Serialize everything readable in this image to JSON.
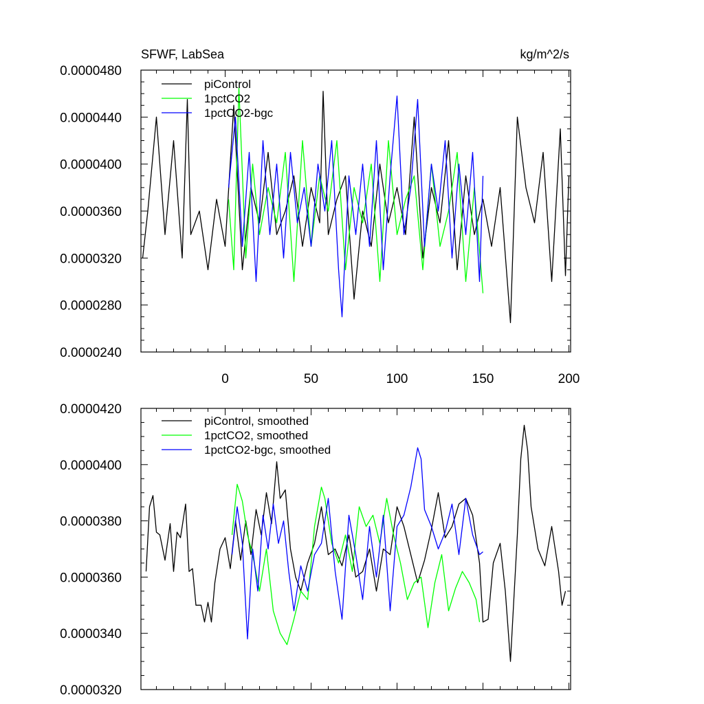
{
  "chart_data": [
    {
      "type": "line",
      "title": "SFWF, LabSea",
      "units": "kg/m^2/s",
      "xlim": [
        -49,
        201
      ],
      "ylim": [
        2.4e-05,
        4.8e-05
      ],
      "xticks": [
        0,
        50,
        100,
        150,
        200
      ],
      "xtick_labels": [
        "0",
        "50",
        "100",
        "150",
        "200"
      ],
      "yticks": [
        2.4e-05,
        2.8e-05,
        3.2e-05,
        3.6e-05,
        4e-05,
        4.4e-05,
        4.8e-05
      ],
      "ytick_labels": [
        "0.0000240",
        "0.0000280",
        "0.0000320",
        "0.0000360",
        "0.0000400",
        "0.0000440",
        "0.0000480"
      ],
      "legend_position": "top-left",
      "series": [
        {
          "name": "piControl",
          "color": "#000000",
          "x": [
            -48,
            -45,
            -40,
            -35,
            -30,
            -25,
            -22,
            -20,
            -15,
            -10,
            -5,
            0,
            5,
            10,
            15,
            20,
            25,
            30,
            35,
            40,
            45,
            50,
            55,
            57,
            60,
            65,
            70,
            75,
            80,
            85,
            90,
            95,
            100,
            105,
            110,
            115,
            120,
            125,
            130,
            135,
            140,
            145,
            150,
            155,
            160,
            166,
            170,
            175,
            180,
            185,
            190,
            195,
            198,
            200
          ],
          "values": [
            3.2e-05,
            3.6e-05,
            4.4e-05,
            3.4e-05,
            4.2e-05,
            3.2e-05,
            4.55e-05,
            3.4e-05,
            3.6e-05,
            3.1e-05,
            3.7e-05,
            3.3e-05,
            4.5e-05,
            3.1e-05,
            3.8e-05,
            3.5e-05,
            4.1e-05,
            3.4e-05,
            3.6e-05,
            3.9e-05,
            3.3e-05,
            3.8e-05,
            3.5e-05,
            4.62e-05,
            3.4e-05,
            3.7e-05,
            3.9e-05,
            2.85e-05,
            3.6e-05,
            3.3e-05,
            4e-05,
            3.5e-05,
            3.8e-05,
            3.4e-05,
            4.4e-05,
            3.2e-05,
            3.8e-05,
            3.5e-05,
            4.2e-05,
            3.1e-05,
            3.9e-05,
            3.4e-05,
            3.7e-05,
            3.3e-05,
            3.8e-05,
            2.65e-05,
            4.4e-05,
            3.8e-05,
            3.5e-05,
            4.1e-05,
            3e-05,
            4.3e-05,
            3.05e-05,
            3.9e-05
          ]
        },
        {
          "name": "1pctCO2",
          "color": "#00ff00",
          "x": [
            2,
            5,
            8,
            12,
            16,
            20,
            25,
            30,
            35,
            40,
            45,
            50,
            55,
            60,
            65,
            70,
            75,
            80,
            85,
            90,
            95,
            100,
            105,
            110,
            115,
            120,
            125,
            130,
            135,
            140,
            145,
            150
          ],
          "values": [
            3.7e-05,
            3.1e-05,
            4.65e-05,
            3.2e-05,
            4e-05,
            3.4e-05,
            3.8e-05,
            3.5e-05,
            4.1e-05,
            3e-05,
            4.2e-05,
            3.3e-05,
            3.9e-05,
            3.6e-05,
            4.2e-05,
            3.1e-05,
            3.8e-05,
            3.5e-05,
            4e-05,
            3e-05,
            4.2e-05,
            3.4e-05,
            3.7e-05,
            3.9e-05,
            3.1e-05,
            4e-05,
            3.3e-05,
            3.6e-05,
            4.1e-05,
            3e-05,
            3.8e-05,
            2.9e-05
          ]
        },
        {
          "name": "1pctCO2-bgc",
          "color": "#0000ff",
          "x": [
            2,
            6,
            10,
            14,
            18,
            22,
            26,
            30,
            34,
            38,
            42,
            46,
            50,
            54,
            58,
            62,
            66,
            68,
            72,
            76,
            80,
            84,
            88,
            92,
            96,
            100,
            104,
            108,
            112,
            116,
            120,
            124,
            128,
            132,
            136,
            140,
            144,
            148,
            150
          ],
          "values": [
            3.8e-05,
            4.4e-05,
            3.3e-05,
            4.1e-05,
            3e-05,
            4.2e-05,
            3.4e-05,
            4e-05,
            3.2e-05,
            4.1e-05,
            3.5e-05,
            3.8e-05,
            3.3e-05,
            4e-05,
            3.6e-05,
            4.2e-05,
            3.1e-05,
            2.7e-05,
            3.9e-05,
            3.4e-05,
            4e-05,
            3.3e-05,
            4.2e-05,
            3.1e-05,
            3.9e-05,
            4.58e-05,
            3.4e-05,
            3.8e-05,
            4.55e-05,
            3.3e-05,
            4e-05,
            3.6e-05,
            4.2e-05,
            3.2e-05,
            4e-05,
            3.4e-05,
            4.1e-05,
            3e-05,
            3.9e-05
          ]
        }
      ]
    },
    {
      "type": "line",
      "title": "",
      "units": "",
      "xlim": [
        -49,
        201
      ],
      "ylim": [
        3.2e-05,
        4.2e-05
      ],
      "xticks": [
        0,
        50,
        100,
        150,
        200
      ],
      "xtick_labels": [
        "",
        "",
        "",
        "",
        ""
      ],
      "yticks": [
        3.2e-05,
        3.4e-05,
        3.6e-05,
        3.8e-05,
        4e-05,
        4.2e-05
      ],
      "ytick_labels": [
        "0.0000320",
        "0.0000340",
        "0.0000360",
        "0.0000380",
        "0.0000400",
        "0.0000420"
      ],
      "legend_position": "top-left",
      "series": [
        {
          "name": "piControl, smoothed",
          "color": "#000000",
          "x": [
            -46,
            -44,
            -42,
            -40,
            -38,
            -35,
            -32,
            -30,
            -28,
            -26,
            -23,
            -21,
            -19,
            -17,
            -14,
            -12,
            -10,
            -8,
            -6,
            -3,
            0,
            3,
            6,
            9,
            12,
            15,
            18,
            21,
            24,
            27,
            30,
            32,
            35,
            38,
            41,
            44,
            48,
            52,
            56,
            60,
            64,
            68,
            72,
            76,
            80,
            84,
            88,
            92,
            96,
            100,
            104,
            108,
            112,
            116,
            120,
            124,
            128,
            132,
            136,
            140,
            144,
            148,
            150,
            153,
            156,
            160,
            163,
            166,
            170,
            172,
            174,
            176,
            178,
            182,
            186,
            190,
            194,
            196,
            198
          ],
          "values": [
            3.62e-05,
            3.85e-05,
            3.89e-05,
            3.76e-05,
            3.75e-05,
            3.66e-05,
            3.79e-05,
            3.62e-05,
            3.76e-05,
            3.74e-05,
            3.86e-05,
            3.62e-05,
            3.63e-05,
            3.5e-05,
            3.5e-05,
            3.44e-05,
            3.51e-05,
            3.44e-05,
            3.58e-05,
            3.7e-05,
            3.74e-05,
            3.63e-05,
            3.8e-05,
            3.66e-05,
            3.8e-05,
            3.68e-05,
            3.84e-05,
            3.75e-05,
            3.9e-05,
            3.79e-05,
            4.01e-05,
            3.88e-05,
            3.91e-05,
            3.7e-05,
            3.6e-05,
            3.55e-05,
            3.65e-05,
            3.72e-05,
            3.85e-05,
            3.68e-05,
            3.7e-05,
            3.64e-05,
            3.75e-05,
            3.6e-05,
            3.62e-05,
            3.7e-05,
            3.55e-05,
            3.7e-05,
            3.68e-05,
            3.85e-05,
            3.78e-05,
            3.68e-05,
            3.58e-05,
            3.66e-05,
            3.77e-05,
            3.9e-05,
            3.74e-05,
            3.78e-05,
            3.86e-05,
            3.88e-05,
            3.82e-05,
            3.65e-05,
            3.44e-05,
            3.45e-05,
            3.65e-05,
            3.72e-05,
            3.55e-05,
            3.3e-05,
            3.75e-05,
            4.02e-05,
            4.14e-05,
            4.05e-05,
            3.85e-05,
            3.7e-05,
            3.64e-05,
            3.78e-05,
            3.62e-05,
            3.5e-05,
            3.55e-05
          ]
        },
        {
          "name": "1pctCO2, smoothed",
          "color": "#00ff00",
          "x": [
            4,
            7,
            10,
            13,
            16,
            20,
            24,
            28,
            32,
            36,
            40,
            44,
            48,
            52,
            56,
            58,
            62,
            66,
            70,
            74,
            78,
            82,
            86,
            90,
            94,
            98,
            102,
            106,
            110,
            114,
            118,
            122,
            126,
            130,
            134,
            138,
            142,
            146,
            148
          ],
          "values": [
            3.75e-05,
            3.93e-05,
            3.87e-05,
            3.75e-05,
            3.68e-05,
            3.55e-05,
            3.7e-05,
            3.48e-05,
            3.4e-05,
            3.36e-05,
            3.45e-05,
            3.55e-05,
            3.52e-05,
            3.78e-05,
            3.92e-05,
            3.88e-05,
            3.72e-05,
            3.65e-05,
            3.75e-05,
            3.62e-05,
            3.85e-05,
            3.78e-05,
            3.82e-05,
            3.72e-05,
            3.88e-05,
            3.75e-05,
            3.65e-05,
            3.52e-05,
            3.58e-05,
            3.6e-05,
            3.42e-05,
            3.58e-05,
            3.68e-05,
            3.48e-05,
            3.56e-05,
            3.62e-05,
            3.58e-05,
            3.52e-05,
            3.44e-05
          ]
        },
        {
          "name": "1pctCO2-bgc, smoothed",
          "color": "#0000ff",
          "x": [
            4,
            7,
            10,
            13,
            16,
            19,
            22,
            25,
            28,
            31,
            34,
            37,
            40,
            44,
            48,
            52,
            56,
            60,
            64,
            68,
            72,
            76,
            80,
            84,
            88,
            92,
            96,
            100,
            104,
            108,
            112,
            114,
            116,
            120,
            124,
            128,
            132,
            136,
            140,
            144,
            148,
            150
          ],
          "values": [
            3.68e-05,
            3.85e-05,
            3.72e-05,
            3.38e-05,
            3.7e-05,
            3.55e-05,
            3.82e-05,
            3.7e-05,
            3.86e-05,
            3.72e-05,
            3.8e-05,
            3.62e-05,
            3.48e-05,
            3.64e-05,
            3.55e-05,
            3.68e-05,
            3.72e-05,
            3.88e-05,
            3.62e-05,
            3.45e-05,
            3.82e-05,
            3.68e-05,
            3.52e-05,
            3.78e-05,
            3.6e-05,
            3.82e-05,
            3.48e-05,
            3.78e-05,
            3.82e-05,
            3.92e-05,
            4.06e-05,
            4.02e-05,
            3.84e-05,
            3.78e-05,
            3.7e-05,
            3.76e-05,
            3.86e-05,
            3.68e-05,
            3.88e-05,
            3.75e-05,
            3.68e-05,
            3.69e-05
          ]
        }
      ]
    }
  ]
}
